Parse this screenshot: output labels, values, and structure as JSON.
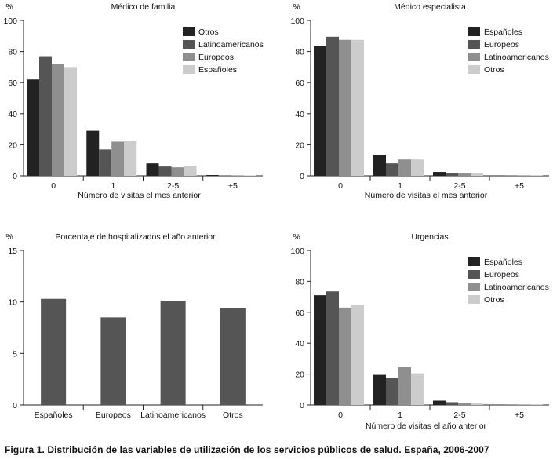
{
  "caption": "Figura 1. Distribución de las variables de utilización de los servicios públicos de salud. España, 2006-2007",
  "chart_data": [
    {
      "type": "bar",
      "title": "Médico de familia",
      "ylabel": "%",
      "xlabel": "Número de visitas el mes anterior",
      "ylim": [
        0,
        100
      ],
      "yticks": [
        0,
        20,
        40,
        60,
        80,
        100
      ],
      "categories": [
        "0",
        "1",
        "2-5",
        "+5"
      ],
      "legend_position": "top-right",
      "series": [
        {
          "name": "Otros",
          "color": "#222222",
          "values": [
            62,
            29,
            8,
            0.5
          ]
        },
        {
          "name": "Latinoamericanos",
          "color": "#555555",
          "values": [
            77,
            17,
            6,
            0.3
          ]
        },
        {
          "name": "Europeos",
          "color": "#8f8f8f",
          "values": [
            72,
            22,
            5.5,
            0.3
          ]
        },
        {
          "name": "Españoles",
          "color": "#cccccc",
          "values": [
            70,
            22.5,
            6.5,
            0.3
          ]
        }
      ]
    },
    {
      "type": "bar",
      "title": "Médico especialista",
      "ylabel": "%",
      "xlabel": "Número de visitas el mes anterior",
      "ylim": [
        0,
        100
      ],
      "yticks": [
        0,
        20,
        40,
        60,
        80,
        100
      ],
      "categories": [
        "0",
        "1",
        "2-5",
        "+5"
      ],
      "legend_position": "top-right",
      "series": [
        {
          "name": "Españoles",
          "color": "#222222",
          "values": [
            83.5,
            13.5,
            2.5,
            0.2
          ]
        },
        {
          "name": "Europeos",
          "color": "#555555",
          "values": [
            89.5,
            8,
            1.5,
            0.2
          ]
        },
        {
          "name": "Latinoamericanos",
          "color": "#8f8f8f",
          "values": [
            87.5,
            10.5,
            1.5,
            0.2
          ]
        },
        {
          "name": "Otros",
          "color": "#cccccc",
          "values": [
            87.5,
            10.5,
            1.5,
            0.2
          ]
        }
      ]
    },
    {
      "type": "bar",
      "title": "Porcentaje de hospitalizados el año anterior",
      "ylabel": "%",
      "xlabel": "",
      "ylim": [
        0,
        15
      ],
      "yticks": [
        0,
        5,
        10,
        15
      ],
      "categories": [
        "Españoles",
        "Europeos",
        "Latinoamericanos",
        "Otros"
      ],
      "legend_position": "none",
      "series": [
        {
          "name": "Hospitalizados",
          "color": "#555555",
          "values": [
            10.3,
            8.5,
            10.1,
            9.4
          ]
        }
      ]
    },
    {
      "type": "bar",
      "title": "Urgencias",
      "ylabel": "%",
      "xlabel": "Número de visitas el año anterior",
      "ylim": [
        0,
        100
      ],
      "yticks": [
        0,
        20,
        40,
        60,
        80,
        100
      ],
      "categories": [
        "0",
        "1",
        "2-5",
        "+5"
      ],
      "legend_position": "top-right",
      "series": [
        {
          "name": "Españoles",
          "color": "#222222",
          "values": [
            71,
            19.5,
            2.8,
            0.2
          ]
        },
        {
          "name": "Europeos",
          "color": "#555555",
          "values": [
            73.5,
            17.5,
            1.8,
            0.2
          ]
        },
        {
          "name": "Latinoamericanos",
          "color": "#8f8f8f",
          "values": [
            63,
            24.5,
            1.5,
            0.2
          ]
        },
        {
          "name": "Otros",
          "color": "#cccccc",
          "values": [
            65,
            20.5,
            1.5,
            0.2
          ]
        }
      ]
    }
  ]
}
